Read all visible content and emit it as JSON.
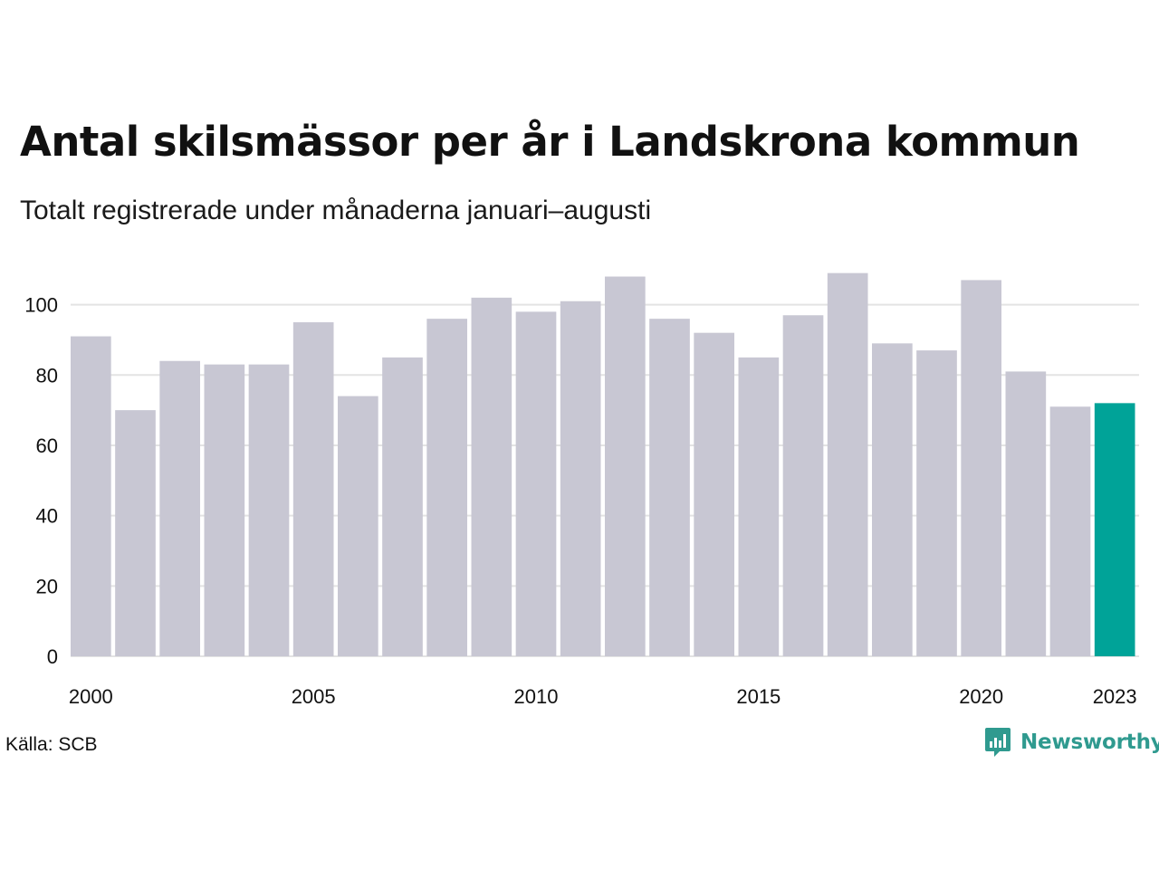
{
  "chart_data": {
    "type": "bar",
    "title": "Antal skilsmässor per år i Landskrona kommun",
    "subtitle": "Totalt registrerade under månaderna januari–augusti",
    "xlabel": "",
    "ylabel": "",
    "categories": [
      "2000",
      "2001",
      "2002",
      "2003",
      "2004",
      "2005",
      "2006",
      "2007",
      "2008",
      "2009",
      "2010",
      "2011",
      "2012",
      "2013",
      "2014",
      "2015",
      "2016",
      "2017",
      "2018",
      "2019",
      "2020",
      "2021",
      "2022",
      "2023"
    ],
    "values": [
      91,
      70,
      84,
      83,
      83,
      95,
      74,
      85,
      96,
      102,
      98,
      101,
      108,
      96,
      92,
      85,
      97,
      109,
      89,
      87,
      107,
      81,
      71,
      72
    ],
    "x_tick_labels": [
      "2000",
      "2005",
      "2010",
      "2015",
      "2020",
      "2023"
    ],
    "y_ticks": [
      0,
      20,
      40,
      60,
      80,
      100
    ],
    "ylim": [
      0,
      112
    ],
    "grid": true,
    "legend": "none",
    "colors": {
      "bar": "#c8c7d3",
      "highlight": "#00a398",
      "grid": "#e3e3e3"
    },
    "highlight_category": "2023"
  },
  "footer": {
    "source": "Källa: SCB",
    "logo_text": "Newsworthy",
    "logo_icon": "newsworthy-chart-icon",
    "logo_color": "#2f9a8f"
  }
}
